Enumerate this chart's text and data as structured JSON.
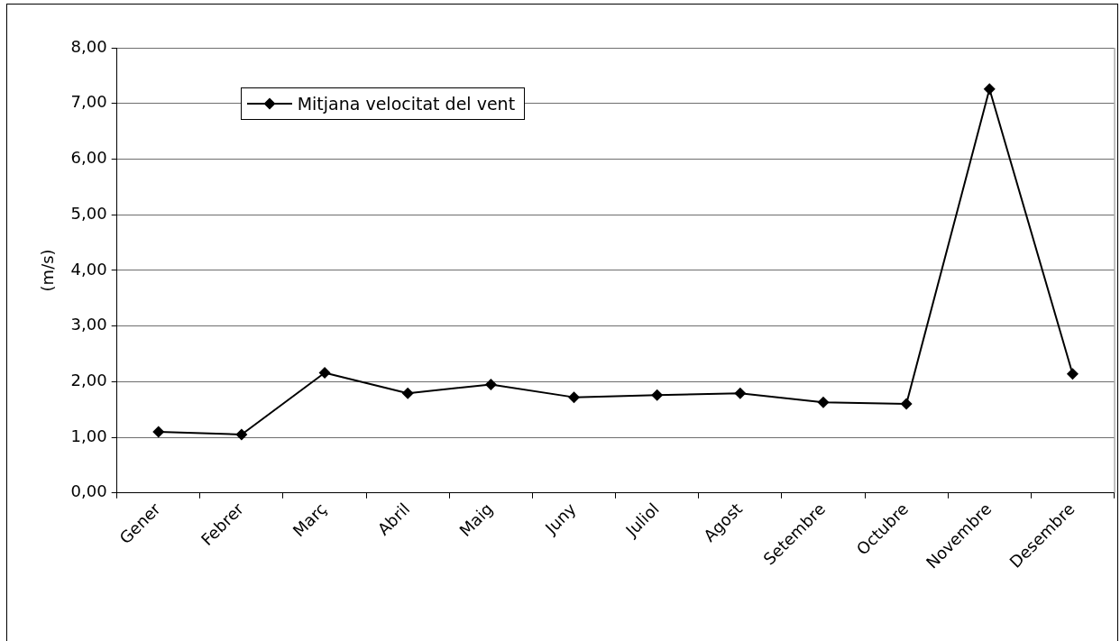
{
  "chart_data": {
    "type": "line",
    "ylabel": "(m/s)",
    "categories": [
      "Gener",
      "Febrer",
      "Març",
      "Abril",
      "Maig",
      "Juny",
      "Juliol",
      "Agost",
      "Setembre",
      "Octubre",
      "Novembre",
      "Desembre"
    ],
    "series": [
      {
        "name": "Mitjana velocitat del vent",
        "color": "#000000",
        "values": [
          1.1,
          1.05,
          2.16,
          1.79,
          1.95,
          1.72,
          1.76,
          1.79,
          1.63,
          1.6,
          7.26,
          2.14
        ]
      }
    ],
    "ylim": [
      0,
      8
    ],
    "yticks": [
      {
        "value": 0,
        "label": "0,00"
      },
      {
        "value": 1,
        "label": "1,00"
      },
      {
        "value": 2,
        "label": "2,00"
      },
      {
        "value": 3,
        "label": "3,00"
      },
      {
        "value": 4,
        "label": "4,00"
      },
      {
        "value": 5,
        "label": "5,00"
      },
      {
        "value": 6,
        "label": "6,00"
      },
      {
        "value": 7,
        "label": "7,00"
      },
      {
        "value": 8,
        "label": "8,00"
      }
    ],
    "grid": "y",
    "legend": "top left",
    "marker": "diamond",
    "line_style": "solid"
  }
}
